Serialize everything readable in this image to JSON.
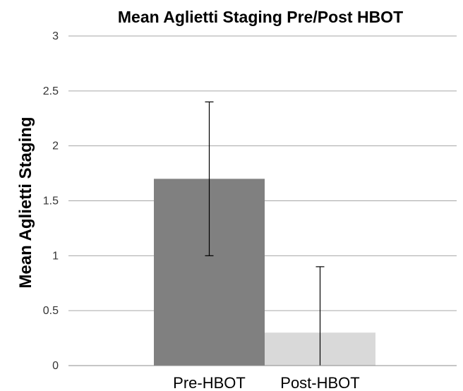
{
  "chart_data": {
    "type": "bar",
    "title": "Mean Aglietti Staging Pre/Post HBOT",
    "xlabel": "",
    "ylabel": "Mean Aglietti Staging",
    "categories": [
      "Pre-HBOT",
      "Post-HBOT"
    ],
    "values": [
      1.7,
      0.3
    ],
    "error_bars": [
      {
        "low": 1.0,
        "high": 2.4
      },
      {
        "low": 0.0,
        "high": 0.9
      }
    ],
    "bar_colors": [
      "#808080",
      "#d9d9d9"
    ],
    "ylim": [
      0,
      3
    ],
    "yticks": [
      "0",
      "0.5",
      "1",
      "1.5",
      "2",
      "2.5",
      "3"
    ],
    "grid": true,
    "legend": "none"
  }
}
